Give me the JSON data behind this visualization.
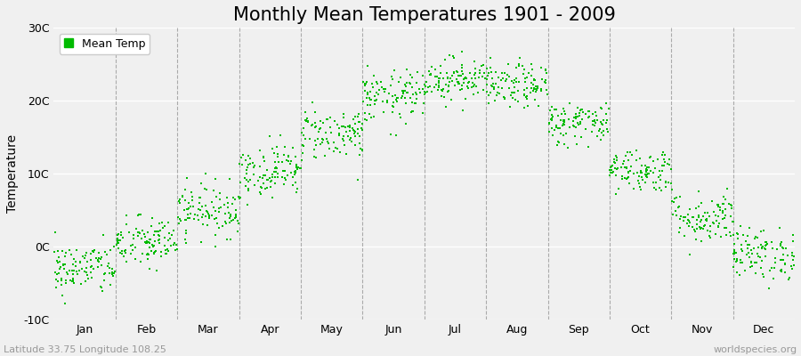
{
  "title": "Monthly Mean Temperatures 1901 - 2009",
  "ylabel": "Temperature",
  "subtitle": "Latitude 33.75 Longitude 108.25",
  "watermark": "worldspecies.org",
  "legend_label": "Mean Temp",
  "ylim": [
    -10,
    30
  ],
  "yticks": [
    -10,
    0,
    10,
    20,
    30
  ],
  "ytick_labels": [
    "-10C",
    "0C",
    "10C",
    "20C",
    "30C"
  ],
  "months": [
    "Jan",
    "Feb",
    "Mar",
    "Apr",
    "May",
    "Jun",
    "Jul",
    "Aug",
    "Sep",
    "Oct",
    "Nov",
    "Dec"
  ],
  "month_means": [
    -3.0,
    0.5,
    5.0,
    10.5,
    15.5,
    20.5,
    23.0,
    22.0,
    17.0,
    10.5,
    4.0,
    -1.0
  ],
  "month_stds": [
    1.8,
    1.8,
    1.8,
    1.8,
    1.8,
    1.8,
    1.5,
    1.5,
    1.5,
    1.5,
    1.8,
    1.8
  ],
  "n_years": 109,
  "dot_color": "#00bb00",
  "dot_size": 3,
  "background_color": "#f0f0f0",
  "plot_bg_color": "#f0f0f0",
  "dashed_line_color": "#999999",
  "title_fontsize": 15,
  "axis_label_fontsize": 10,
  "tick_fontsize": 9,
  "legend_fontsize": 9,
  "subtitle_fontsize": 8,
  "watermark_fontsize": 8
}
